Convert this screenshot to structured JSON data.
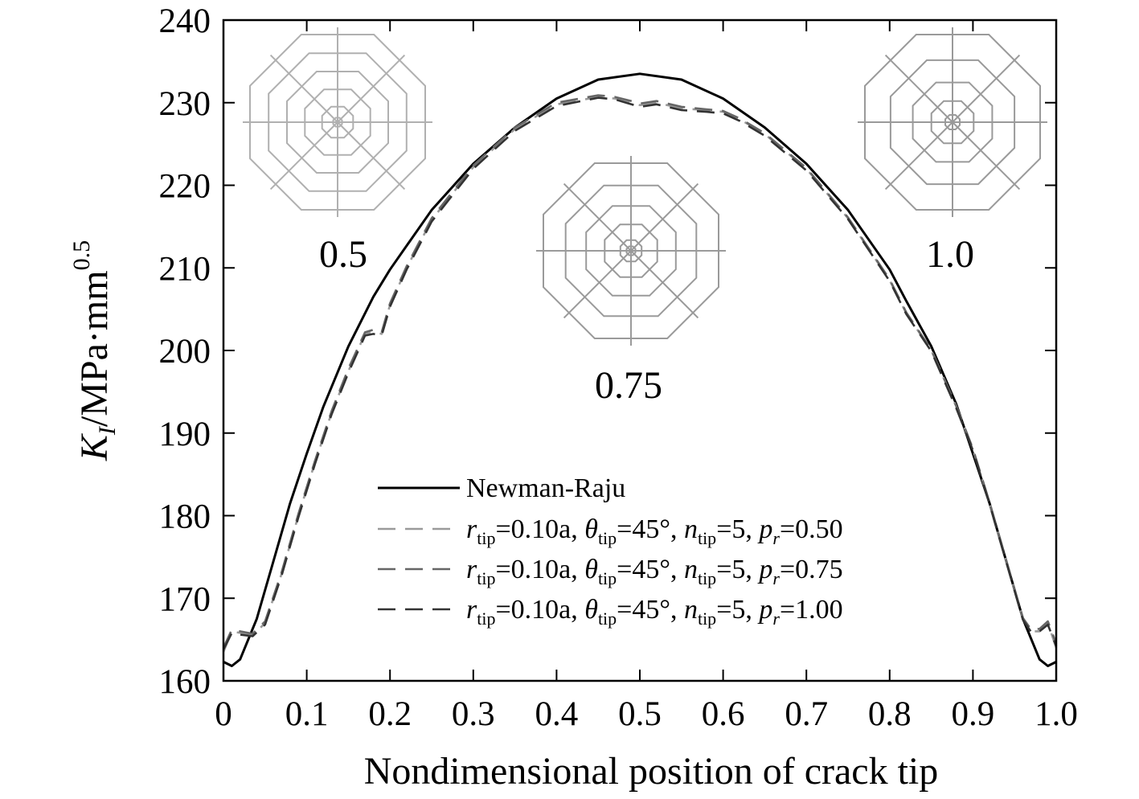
{
  "chart_data": {
    "type": "line",
    "xlabel": "Nondimensional position of crack tip",
    "ylabel": {
      "main": "K",
      "subscript": "I",
      "unit": "/MPa·mm",
      "superscript": "0.5"
    },
    "xlim": [
      0,
      1.0
    ],
    "ylim": [
      160,
      240
    ],
    "xticks": [
      "0",
      "0.1",
      "0.2",
      "0.3",
      "0.4",
      "0.5",
      "0.6",
      "0.7",
      "0.8",
      "0.9",
      "1.0"
    ],
    "yticks": [
      "160",
      "170",
      "180",
      "190",
      "200",
      "210",
      "220",
      "230",
      "240"
    ],
    "grid": false,
    "legend_position": "lower-center",
    "series": [
      {
        "name": "Newman-Raju",
        "style": "solid",
        "color": "#000000",
        "x": [
          0,
          0.01,
          0.02,
          0.04,
          0.06,
          0.08,
          0.1,
          0.12,
          0.15,
          0.18,
          0.2,
          0.25,
          0.3,
          0.35,
          0.4,
          0.45,
          0.5,
          0.55,
          0.6,
          0.65,
          0.7,
          0.75,
          0.8,
          0.82,
          0.85,
          0.88,
          0.9,
          0.92,
          0.94,
          0.96,
          0.98,
          0.99,
          1.0
        ],
        "y": [
          162.3,
          161.8,
          162.6,
          167.5,
          174.5,
          181.5,
          187.5,
          193.2,
          200.5,
          206.5,
          209.8,
          217.0,
          222.6,
          227.0,
          230.5,
          232.8,
          233.5,
          232.8,
          230.5,
          227.0,
          222.6,
          217.0,
          209.8,
          206.0,
          200.5,
          193.5,
          187.5,
          181.5,
          174.5,
          167.5,
          162.6,
          161.8,
          162.3
        ]
      },
      {
        "name": "r_tip=0.10a, θ_tip=45°, n_tip=5, p_r=0.50",
        "style": "dashed",
        "color": "#9a9a9a",
        "x": [
          0,
          0.01,
          0.02,
          0.035,
          0.05,
          0.07,
          0.09,
          0.11,
          0.13,
          0.15,
          0.17,
          0.18,
          0.19,
          0.2,
          0.22,
          0.25,
          0.3,
          0.35,
          0.4,
          0.45,
          0.47,
          0.49,
          0.5,
          0.52,
          0.55,
          0.58,
          0.6,
          0.62,
          0.65,
          0.7,
          0.75,
          0.78,
          0.8,
          0.82,
          0.85,
          0.88,
          0.9,
          0.92,
          0.94,
          0.96,
          0.97,
          0.98,
          0.99,
          1.0
        ],
        "y": [
          163.5,
          166.0,
          165.8,
          165.5,
          167.0,
          173.0,
          180.0,
          186.5,
          192.5,
          197.5,
          202.0,
          202.3,
          202.0,
          205.5,
          210.0,
          215.8,
          222.2,
          226.8,
          229.8,
          230.7,
          230.5,
          230.0,
          229.7,
          230.0,
          229.3,
          229.1,
          228.9,
          228.0,
          226.2,
          222.0,
          216.0,
          211.5,
          208.5,
          204.5,
          200.0,
          193.2,
          188.0,
          181.5,
          174.5,
          167.5,
          166.0,
          166.0,
          167.0,
          164.0
        ]
      },
      {
        "name": "r_tip=0.10a, θ_tip=45°, n_tip=5, p_r=0.75",
        "style": "dashed",
        "color": "#666666",
        "x": [
          0,
          0.01,
          0.02,
          0.035,
          0.05,
          0.07,
          0.09,
          0.11,
          0.13,
          0.15,
          0.17,
          0.18,
          0.19,
          0.2,
          0.22,
          0.25,
          0.3,
          0.35,
          0.4,
          0.45,
          0.47,
          0.49,
          0.5,
          0.52,
          0.55,
          0.58,
          0.6,
          0.62,
          0.65,
          0.7,
          0.75,
          0.78,
          0.8,
          0.82,
          0.85,
          0.88,
          0.9,
          0.92,
          0.94,
          0.96,
          0.97,
          0.98,
          0.99,
          1.0
        ],
        "y": [
          164.0,
          166.2,
          166.0,
          165.7,
          167.2,
          173.2,
          180.2,
          186.7,
          192.7,
          197.8,
          202.2,
          202.5,
          202.2,
          205.7,
          210.2,
          216.0,
          222.4,
          227.0,
          230.0,
          230.9,
          230.7,
          230.2,
          229.9,
          230.2,
          229.5,
          229.2,
          229.0,
          228.1,
          226.3,
          222.1,
          216.1,
          211.6,
          208.6,
          204.6,
          200.1,
          193.3,
          188.1,
          181.6,
          174.6,
          167.6,
          166.2,
          166.3,
          167.2,
          164.5
        ]
      },
      {
        "name": "r_tip=0.10a, θ_tip=45°, n_tip=5, p_r=1.00",
        "style": "dashed",
        "color": "#333333",
        "x": [
          0,
          0.01,
          0.02,
          0.035,
          0.05,
          0.07,
          0.09,
          0.11,
          0.13,
          0.15,
          0.17,
          0.18,
          0.19,
          0.2,
          0.22,
          0.25,
          0.3,
          0.35,
          0.4,
          0.45,
          0.47,
          0.49,
          0.5,
          0.52,
          0.55,
          0.58,
          0.6,
          0.62,
          0.65,
          0.7,
          0.75,
          0.78,
          0.8,
          0.82,
          0.85,
          0.88,
          0.9,
          0.92,
          0.94,
          0.96,
          0.97,
          0.98,
          0.99,
          1.0
        ],
        "y": [
          163.8,
          165.8,
          165.6,
          165.4,
          166.8,
          172.8,
          179.8,
          186.3,
          192.3,
          197.3,
          201.8,
          202.0,
          201.8,
          205.3,
          209.8,
          215.6,
          222.0,
          226.6,
          229.6,
          230.6,
          230.4,
          229.8,
          229.5,
          229.8,
          229.1,
          228.9,
          228.7,
          227.8,
          226.0,
          221.8,
          215.9,
          211.4,
          208.4,
          204.4,
          199.9,
          193.0,
          187.9,
          181.4,
          174.4,
          167.4,
          165.9,
          166.0,
          166.8,
          164.2
        ]
      }
    ],
    "legend": [
      {
        "kind": "plain",
        "text": "Newman-Raju"
      },
      {
        "kind": "param",
        "r": "r",
        "tip": "tip",
        "rval": "=0.10a, ",
        "theta": "θ",
        "thetaval": "=45°, ",
        "n": "n",
        "nval": "=5, ",
        "p": "p",
        "psub": "r",
        "pval": "=0.50"
      },
      {
        "kind": "param",
        "r": "r",
        "tip": "tip",
        "rval": "=0.10a, ",
        "theta": "θ",
        "thetaval": "=45°, ",
        "n": "n",
        "nval": "=5, ",
        "p": "p",
        "psub": "r",
        "pval": "=0.75"
      },
      {
        "kind": "param",
        "r": "r",
        "tip": "tip",
        "rval": "=0.10a, ",
        "theta": "θ",
        "thetaval": "=45°, ",
        "n": "n",
        "nval": "=5, ",
        "p": "p",
        "psub": "r",
        "pval": "=1.00"
      }
    ],
    "insets": [
      {
        "label": "0.5",
        "p_r": 0.5,
        "color": "#b0b0b0"
      },
      {
        "label": "0.75",
        "p_r": 0.75,
        "color": "#9a9a9a"
      },
      {
        "label": "1.0",
        "p_r": 1.0,
        "color": "#9a9a9a"
      }
    ]
  }
}
